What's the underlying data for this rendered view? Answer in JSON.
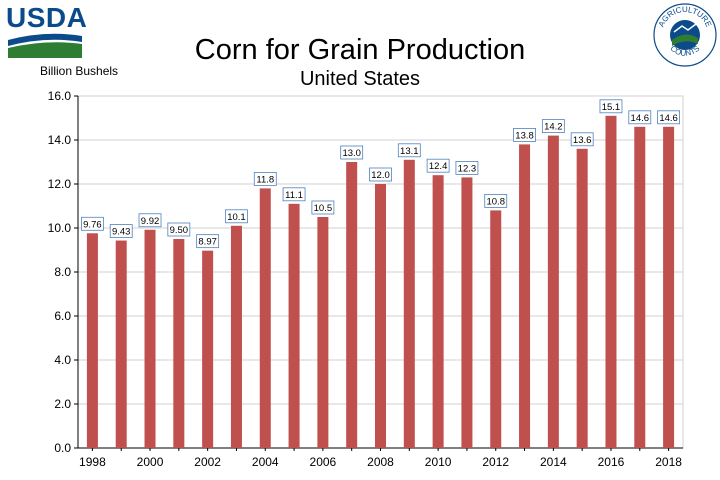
{
  "branding": {
    "agency_logo_text": "USDA",
    "seal_text_top": "AGRICULTURE",
    "seal_text_bottom": "COUNTS"
  },
  "colors": {
    "bar": "#c0504d",
    "axis": "#000000",
    "grid": "#d0d0d0",
    "label_border": "#4f81bd",
    "usda_blue": "#0b4a8b",
    "usda_green": "#2e7d32"
  },
  "chart_data": {
    "type": "bar",
    "title": "Corn for Grain Production",
    "subtitle": "United States",
    "ylabel": "Billion Bushels",
    "xlabel": "",
    "ylim": [
      0,
      16
    ],
    "yticks": [
      "0.0",
      "2.0",
      "4.0",
      "6.0",
      "8.0",
      "10.0",
      "12.0",
      "14.0",
      "16.0"
    ],
    "grid": true,
    "categories": [
      "1998",
      "1999",
      "2000",
      "2001",
      "2002",
      "2003",
      "2004",
      "2005",
      "2006",
      "2007",
      "2008",
      "2009",
      "2010",
      "2011",
      "2012",
      "2013",
      "2014",
      "2015",
      "2016",
      "2017",
      "2018"
    ],
    "values": [
      9.76,
      9.43,
      9.92,
      9.5,
      8.97,
      10.1,
      11.8,
      11.1,
      10.5,
      13.0,
      12.0,
      13.1,
      12.4,
      12.3,
      10.8,
      13.8,
      14.2,
      13.6,
      15.1,
      14.6,
      14.6
    ],
    "data_labels": [
      "9.76",
      "9.43",
      "9.92",
      "9.50",
      "8.97",
      "10.1",
      "11.8",
      "11.1",
      "10.5",
      "13.0",
      "12.0",
      "13.1",
      "12.4",
      "12.3",
      "10.8",
      "13.8",
      "14.2",
      "13.6",
      "15.1",
      "14.6",
      "14.6"
    ],
    "xtick_labels": [
      "1998",
      "2000",
      "2002",
      "2004",
      "2006",
      "2008",
      "2010",
      "2012",
      "2014",
      "2016",
      "2018"
    ]
  }
}
